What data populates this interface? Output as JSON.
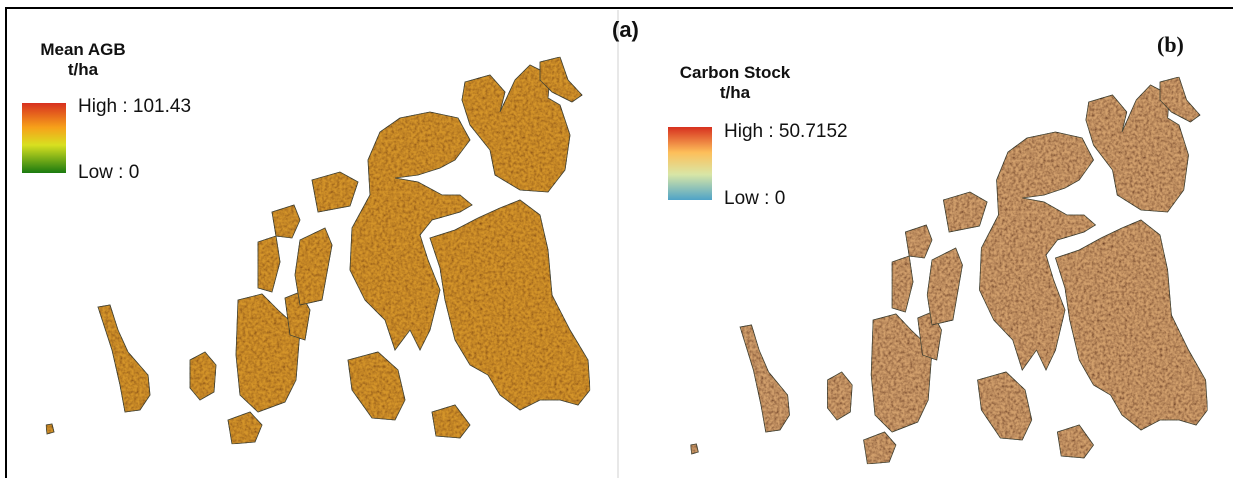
{
  "panels": [
    {
      "label": "(a)",
      "legend": {
        "title": "Mean AGB",
        "unit": "t/ha",
        "high": "High : 101.43",
        "low": "Low : 0"
      }
    },
    {
      "label": "(b)",
      "legend": {
        "title": "Carbon Stock",
        "unit": "t/ha",
        "high": "High : 50.7152",
        "low": "Low : 0"
      }
    }
  ]
}
